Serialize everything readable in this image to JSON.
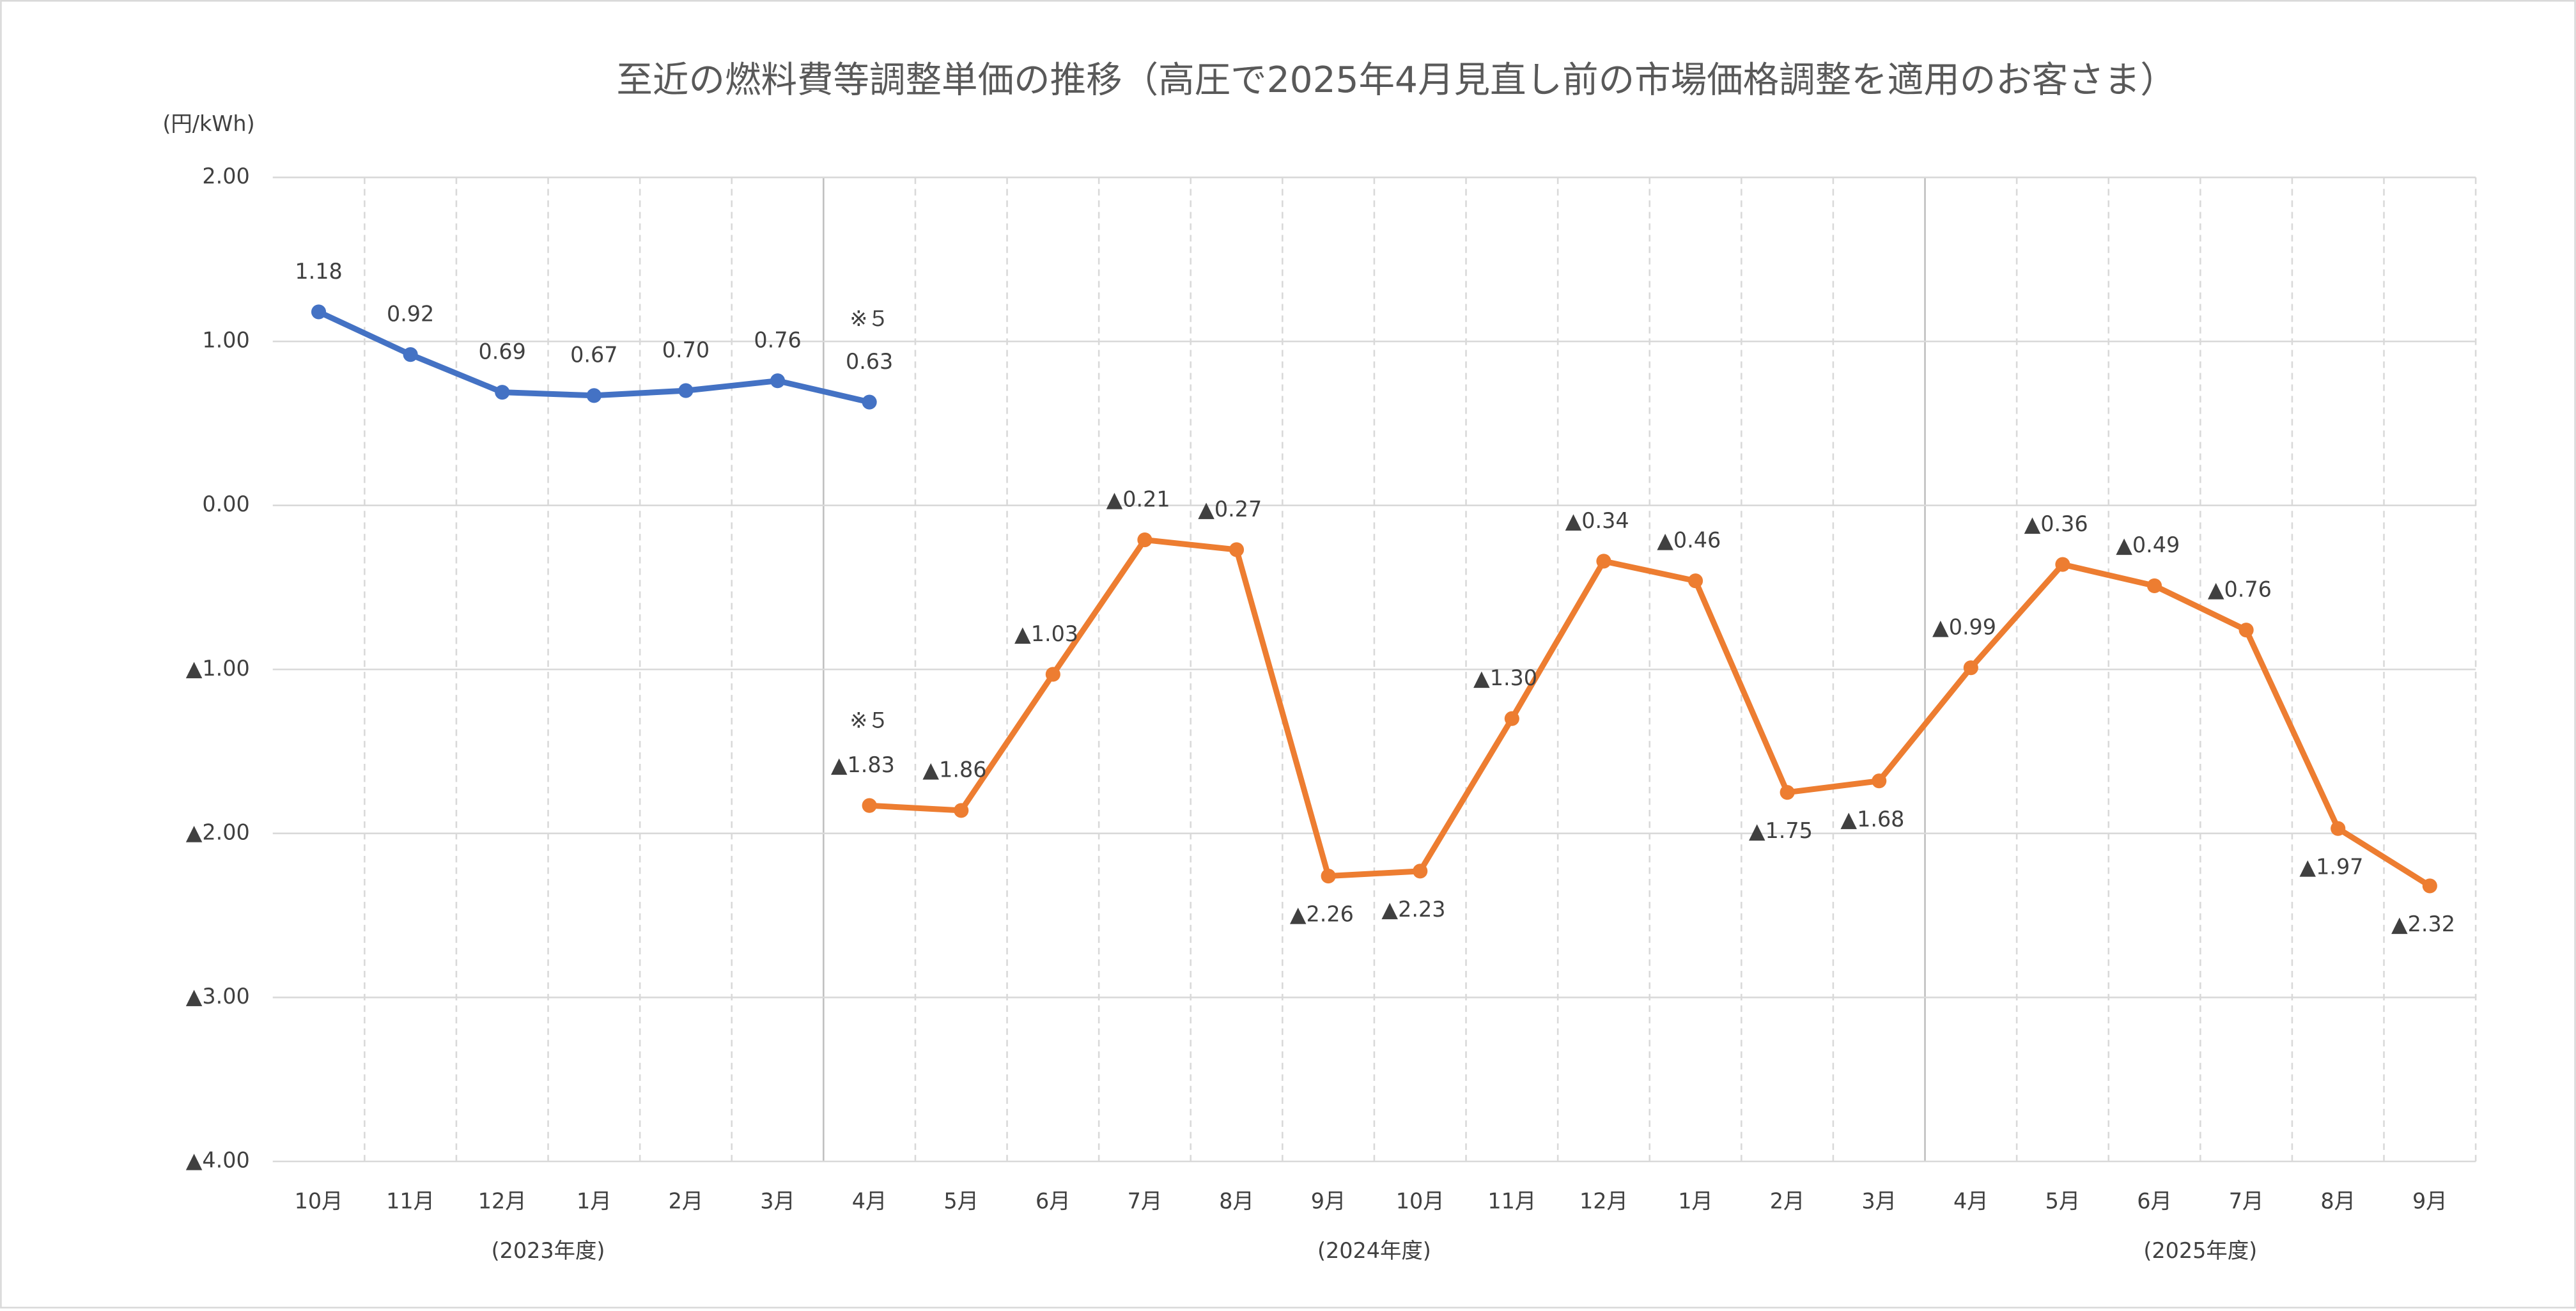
{
  "chart_data": {
    "type": "line",
    "title": "至近の燃料費等調整単価の推移（高圧で2025年4月見直し前の市場価格調整を適用のお客さま）",
    "y_axis_label": "(円/kWh)",
    "categories": [
      "10月",
      "11月",
      "12月",
      "1月",
      "2月",
      "3月",
      "4月",
      "5月",
      "6月",
      "7月",
      "8月",
      "9月",
      "10月",
      "11月",
      "12月",
      "1月",
      "2月",
      "3月",
      "4月",
      "5月",
      "6月",
      "7月",
      "8月",
      "9月"
    ],
    "fiscal_years": [
      "(2023年度)",
      "(2024年度)",
      "(2025年度)"
    ],
    "annotations": [
      "※５",
      "※５"
    ],
    "series": [
      {
        "color": "#4472c4",
        "values": [
          1.18,
          0.92,
          0.69,
          0.67,
          0.7,
          0.76,
          0.63,
          null,
          null,
          null,
          null,
          null,
          null,
          null,
          null,
          null,
          null,
          null,
          null,
          null,
          null,
          null,
          null,
          null
        ],
        "value_labels": [
          "1.18",
          "0.92",
          "0.69",
          "0.67",
          "0.70",
          "0.76",
          "0.63",
          null,
          null,
          null,
          null,
          null,
          null,
          null,
          null,
          null,
          null,
          null,
          null,
          null,
          null,
          null,
          null,
          null
        ]
      },
      {
        "color": "#ed7d31",
        "values": [
          null,
          null,
          null,
          null,
          null,
          null,
          -1.83,
          -1.86,
          -1.03,
          -0.21,
          -0.27,
          -2.26,
          -2.23,
          -1.3,
          -0.34,
          -0.46,
          -1.75,
          -1.68,
          -0.99,
          -0.36,
          -0.49,
          -0.76,
          -1.97,
          -2.32
        ],
        "value_labels": [
          null,
          null,
          null,
          null,
          null,
          null,
          "▲1.83",
          "▲1.86",
          "▲1.03",
          "▲0.21",
          "▲0.27",
          "▲2.26",
          "▲2.23",
          "▲1.30",
          "▲0.34",
          "▲0.46",
          "▲1.75",
          "▲1.68",
          "▲0.99",
          "▲0.36",
          "▲0.49",
          "▲0.76",
          "▲1.97",
          "▲2.32"
        ]
      }
    ],
    "ylim": [
      -4,
      2
    ],
    "yticks": [
      {
        "value": 2,
        "label": "2.00"
      },
      {
        "value": 1,
        "label": "1.00"
      },
      {
        "value": 0,
        "label": "0.00"
      },
      {
        "value": -1,
        "label": "▲1.00"
      },
      {
        "value": -2,
        "label": "▲2.00"
      },
      {
        "value": -3,
        "label": "▲3.00"
      },
      {
        "value": -4,
        "label": "▲4.00"
      }
    ],
    "grid": true
  }
}
